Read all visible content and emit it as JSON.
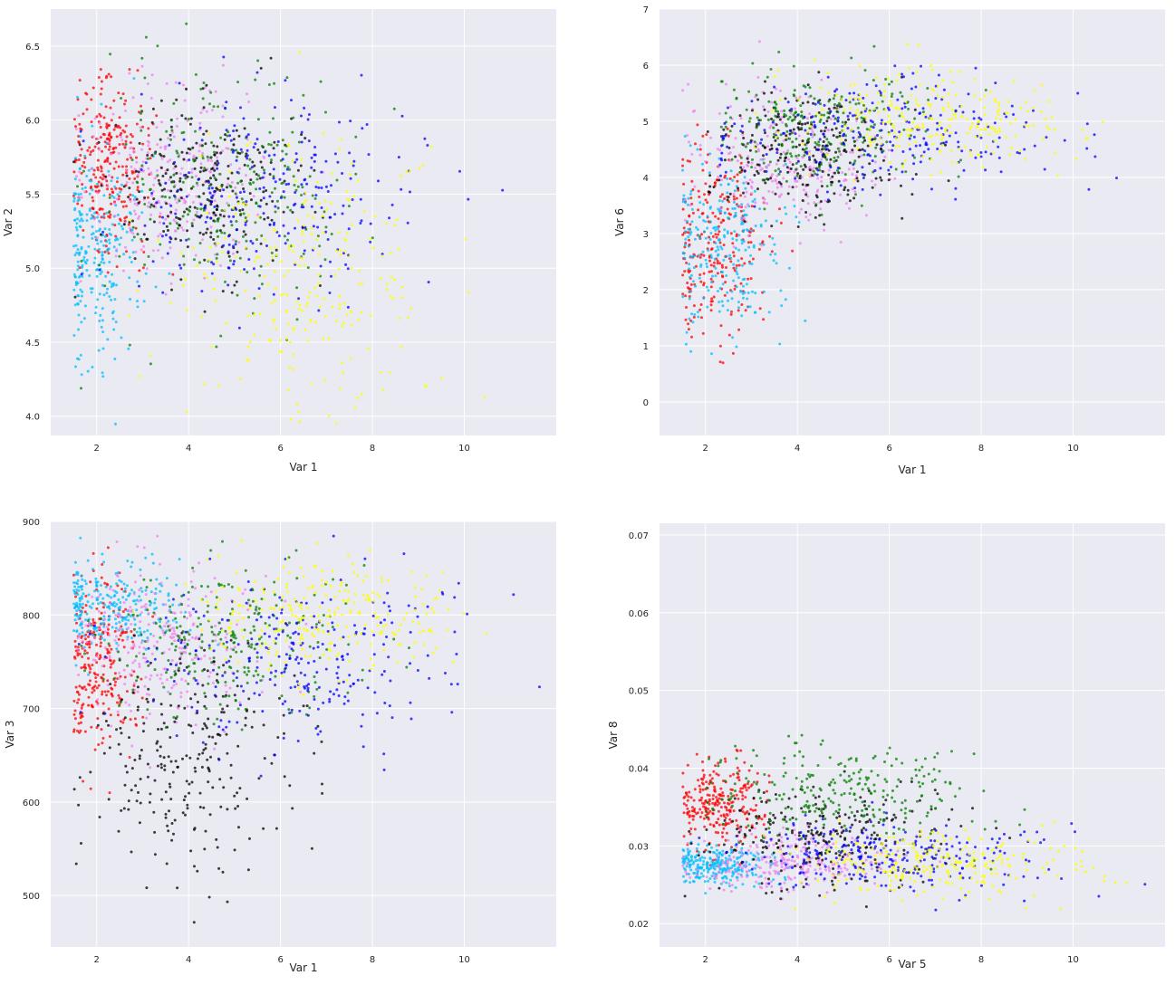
{
  "figure": {
    "background": "#ffffff",
    "plot_background": "#eaeaf2",
    "grid_color": "#ffffff",
    "series_colors": [
      "#ff0000",
      "#00bfff",
      "#ee82ee",
      "#000000",
      "#008000",
      "#0000ff",
      "#ffff00"
    ]
  },
  "chart_data": [
    {
      "type": "scatter",
      "title": "",
      "xlabel": "Var 1",
      "ylabel": "Var 2",
      "xlim": [
        1.0,
        12.0
      ],
      "ylim": [
        3.87,
        6.75
      ],
      "xticks": [
        2,
        4,
        6,
        8,
        10
      ],
      "xtick_labels": [
        "2",
        "4",
        "6",
        "8",
        "10"
      ],
      "yticks": [
        4.0,
        4.5,
        5.0,
        5.5,
        6.0,
        6.5
      ],
      "ytick_labels": [
        "4.0",
        "4.5",
        "5.0",
        "5.5",
        "6.0",
        "6.5"
      ],
      "grid": true,
      "series": [
        {
          "color": "#ff0000",
          "x_center": 2.3,
          "x_spread": 0.45,
          "x_min": 1.5,
          "y_center": 5.7,
          "y_spread": 0.3
        },
        {
          "color": "#00bfff",
          "x_center": 2.0,
          "x_spread": 0.55,
          "x_min": 1.5,
          "y_center": 5.15,
          "y_spread": 0.35
        },
        {
          "color": "#ee82ee",
          "x_center": 3.6,
          "x_spread": 1.0,
          "x_min": 1.5,
          "y_center": 5.6,
          "y_spread": 0.3
        },
        {
          "color": "#000000",
          "x_center": 4.3,
          "x_spread": 1.0,
          "x_min": 1.5,
          "y_center": 5.55,
          "y_spread": 0.3
        },
        {
          "color": "#008000",
          "x_center": 4.8,
          "x_spread": 1.3,
          "x_min": 1.5,
          "y_center": 5.5,
          "y_spread": 0.4
        },
        {
          "color": "#0000ff",
          "x_center": 5.8,
          "x_spread": 1.6,
          "x_min": 1.5,
          "y_center": 5.5,
          "y_spread": 0.35
        },
        {
          "color": "#ffff00",
          "x_center": 6.5,
          "x_spread": 1.5,
          "x_min": 2.5,
          "y_center": 4.95,
          "y_spread": 0.45
        }
      ]
    },
    {
      "type": "scatter",
      "title": "",
      "xlabel": "Var 1",
      "ylabel": "Var 6",
      "xlim": [
        1.0,
        12.0
      ],
      "ylim": [
        -0.6,
        7.0
      ],
      "xticks": [
        2,
        4,
        6,
        8,
        10
      ],
      "xtick_labels": [
        "2",
        "4",
        "6",
        "8",
        "10"
      ],
      "yticks": [
        0,
        1,
        2,
        3,
        4,
        5,
        6,
        7
      ],
      "ytick_labels": [
        "0",
        "1",
        "2",
        "3",
        "4",
        "5",
        "6",
        "7"
      ],
      "grid": true,
      "series": [
        {
          "color": "#ff0000",
          "x_center": 2.2,
          "x_spread": 0.55,
          "x_min": 1.5,
          "y_center": 2.8,
          "y_spread": 0.85
        },
        {
          "color": "#00bfff",
          "x_center": 2.4,
          "x_spread": 0.7,
          "x_min": 1.5,
          "y_center": 2.7,
          "y_spread": 0.8
        },
        {
          "color": "#ee82ee",
          "x_center": 3.8,
          "x_spread": 1.0,
          "x_min": 1.5,
          "y_center": 4.3,
          "y_spread": 0.6
        },
        {
          "color": "#000000",
          "x_center": 4.3,
          "x_spread": 1.0,
          "x_min": 2.0,
          "y_center": 4.5,
          "y_spread": 0.55
        },
        {
          "color": "#008000",
          "x_center": 4.5,
          "x_spread": 1.2,
          "x_min": 2.3,
          "y_center": 4.9,
          "y_spread": 0.55
        },
        {
          "color": "#0000ff",
          "x_center": 6.0,
          "x_spread": 1.8,
          "x_min": 2.3,
          "y_center": 4.8,
          "y_spread": 0.5
        },
        {
          "color": "#ffff00",
          "x_center": 6.8,
          "x_spread": 1.5,
          "x_min": 3.0,
          "y_center": 5.0,
          "y_spread": 0.45
        }
      ]
    },
    {
      "type": "scatter",
      "title": "",
      "xlabel": "Var 1",
      "ylabel": "Var 3",
      "xlim": [
        1.0,
        12.0
      ],
      "ylim": [
        445,
        900
      ],
      "xticks": [
        2,
        4,
        6,
        8,
        10
      ],
      "xtick_labels": [
        "2",
        "4",
        "6",
        "8",
        "10"
      ],
      "yticks": [
        500,
        600,
        700,
        800,
        900
      ],
      "ytick_labels": [
        "500",
        "600",
        "700",
        "800",
        "900"
      ],
      "grid": true,
      "series": [
        {
          "color": "#ff0000",
          "x_center": 2.0,
          "x_spread": 0.45,
          "x_min": 1.5,
          "y_center": 745,
          "y_spread": 50
        },
        {
          "color": "#00bfff",
          "x_center": 2.3,
          "x_spread": 0.8,
          "x_min": 1.5,
          "y_center": 810,
          "y_spread": 25
        },
        {
          "color": "#ee82ee",
          "x_center": 3.5,
          "x_spread": 1.0,
          "x_min": 1.5,
          "y_center": 770,
          "y_spread": 40
        },
        {
          "color": "#000000",
          "x_center": 4.2,
          "x_spread": 1.1,
          "x_min": 1.5,
          "y_center": 650,
          "y_spread": 60
        },
        {
          "color": "#008000",
          "x_center": 4.8,
          "x_spread": 1.3,
          "x_min": 1.5,
          "y_center": 770,
          "y_spread": 40
        },
        {
          "color": "#0000ff",
          "x_center": 6.3,
          "x_spread": 1.7,
          "x_min": 1.5,
          "y_center": 755,
          "y_spread": 45
        },
        {
          "color": "#ffff00",
          "x_center": 6.8,
          "x_spread": 1.5,
          "x_min": 2.5,
          "y_center": 800,
          "y_spread": 30
        }
      ]
    },
    {
      "type": "scatter",
      "title": "",
      "xlabel": "Var 5",
      "ylabel": "Var 8",
      "xlim": [
        1.0,
        12.0
      ],
      "ylim": [
        0.017,
        0.0715
      ],
      "xticks": [
        2,
        4,
        6,
        8,
        10
      ],
      "xtick_labels": [
        "2",
        "4",
        "6",
        "8",
        "10"
      ],
      "yticks": [
        0.02,
        0.03,
        0.04,
        0.05,
        0.06,
        0.07
      ],
      "ytick_labels": [
        "0.02",
        "0.03",
        "0.04",
        "0.05",
        "0.06",
        "0.07"
      ],
      "grid": true,
      "series": [
        {
          "color": "#ff0000",
          "x_center": 2.3,
          "x_spread": 0.5,
          "x_min": 1.5,
          "y_center": 0.0355,
          "y_spread": 0.0028
        },
        {
          "color": "#00bfff",
          "x_center": 2.2,
          "x_spread": 0.6,
          "x_min": 1.5,
          "y_center": 0.0275,
          "y_spread": 0.0012
        },
        {
          "color": "#ee82ee",
          "x_center": 3.8,
          "x_spread": 1.0,
          "x_min": 1.5,
          "y_center": 0.028,
          "y_spread": 0.0018
        },
        {
          "color": "#000000",
          "x_center": 4.5,
          "x_spread": 1.3,
          "x_min": 1.5,
          "y_center": 0.031,
          "y_spread": 0.0035
        },
        {
          "color": "#008000",
          "x_center": 4.8,
          "x_spread": 1.5,
          "x_min": 2.0,
          "y_center": 0.037,
          "y_spread": 0.003
        },
        {
          "color": "#0000ff",
          "x_center": 6.0,
          "x_spread": 1.8,
          "x_min": 1.5,
          "y_center": 0.0285,
          "y_spread": 0.0025
        },
        {
          "color": "#ffff00",
          "x_center": 6.8,
          "x_spread": 1.5,
          "x_min": 2.5,
          "y_center": 0.0275,
          "y_spread": 0.0022
        }
      ]
    }
  ]
}
